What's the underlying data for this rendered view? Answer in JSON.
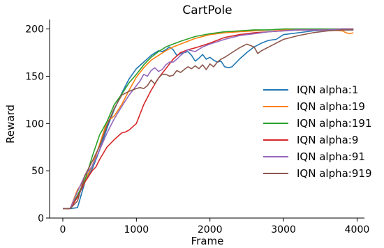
{
  "chart_data": {
    "type": "line",
    "title": "CartPole",
    "xlabel": "Frame",
    "ylabel": "Reward",
    "xlim": [
      -180,
      4100
    ],
    "ylim": [
      0,
      210
    ],
    "xticks": [
      0,
      1000,
      2000,
      3000,
      4000
    ],
    "yticks": [
      0,
      50,
      100,
      150,
      200
    ],
    "grid": false,
    "legend_position": "center-right",
    "series": [
      {
        "name": "IQN alpha:1",
        "color": "#1f77b4",
        "x": [
          0,
          100,
          200,
          300,
          400,
          500,
          600,
          700,
          800,
          900,
          1000,
          1100,
          1200,
          1300,
          1350,
          1400,
          1450,
          1500,
          1550,
          1600,
          1700,
          1750,
          1800,
          1850,
          1900,
          1950,
          2000,
          2050,
          2100,
          2150,
          2200,
          2250,
          2300,
          2350,
          2400,
          2500,
          2600,
          2700,
          2800,
          2900,
          3000,
          3200,
          3400,
          3600,
          3800,
          3950
        ],
        "y": [
          10,
          10,
          11,
          38,
          52,
          72,
          95,
          115,
          132,
          147,
          158,
          165,
          172,
          177,
          176,
          178,
          181,
          178,
          172,
          174,
          176,
          172,
          166,
          169,
          173,
          168,
          170,
          167,
          165,
          166,
          160,
          159,
          160,
          164,
          168,
          175,
          181,
          185,
          188,
          189,
          194,
          196,
          198,
          199,
          199,
          199
        ]
      },
      {
        "name": "IQN alpha:19",
        "color": "#ff7f0e",
        "x": [
          0,
          100,
          200,
          300,
          400,
          500,
          600,
          700,
          800,
          900,
          1000,
          1100,
          1200,
          1300,
          1400,
          1500,
          1600,
          1800,
          2000,
          2200,
          2400,
          2600,
          2800,
          3000,
          3200,
          3400,
          3600,
          3800,
          3850,
          3900,
          3950
        ],
        "y": [
          10,
          10,
          30,
          40,
          55,
          78,
          102,
          108,
          120,
          135,
          149,
          159,
          167,
          172,
          177,
          181,
          184,
          190,
          194,
          196,
          197,
          198,
          199,
          199,
          199,
          199,
          199,
          198,
          196,
          195,
          196
        ]
      },
      {
        "name": "IQN alpha:191",
        "color": "#2ca02c",
        "x": [
          0,
          100,
          200,
          300,
          400,
          500,
          600,
          700,
          800,
          900,
          1000,
          1100,
          1200,
          1300,
          1400,
          1500,
          1600,
          1800,
          2000,
          2200,
          2400,
          2600,
          2800,
          3000,
          3200,
          3400,
          3600,
          3800,
          3950
        ],
        "y": [
          10,
          10,
          24,
          40,
          65,
          88,
          102,
          120,
          131,
          143,
          152,
          162,
          170,
          176,
          181,
          184,
          187,
          192,
          195,
          197,
          198,
          199,
          199,
          200,
          200,
          200,
          200,
          200,
          200
        ]
      },
      {
        "name": "IQN alpha:9",
        "color": "#d62728",
        "x": [
          0,
          100,
          200,
          300,
          400,
          450,
          500,
          600,
          700,
          800,
          850,
          900,
          1000,
          1100,
          1200,
          1300,
          1400,
          1500,
          1600,
          1700,
          1800,
          2000,
          2200,
          2400,
          2600,
          2800,
          3000,
          3200,
          3400,
          3600,
          3800,
          3950
        ],
        "y": [
          10,
          10,
          22,
          38,
          50,
          54,
          62,
          75,
          83,
          90,
          91,
          93,
          100,
          120,
          135,
          148,
          158,
          168,
          175,
          178,
          180,
          185,
          191,
          194,
          196,
          197,
          198,
          199,
          199,
          199,
          200,
          200
        ]
      },
      {
        "name": "IQN alpha:91",
        "color": "#9467bd",
        "x": [
          0,
          100,
          200,
          300,
          400,
          500,
          600,
          700,
          800,
          900,
          1000,
          1050,
          1100,
          1150,
          1200,
          1250,
          1300,
          1350,
          1400,
          1450,
          1500,
          1550,
          1600,
          1700,
          1800,
          1900,
          2000,
          2200,
          2400,
          2600,
          2800,
          3000,
          3200,
          3400,
          3600,
          3800,
          3950
        ],
        "y": [
          10,
          10,
          28,
          45,
          55,
          72,
          90,
          105,
          118,
          130,
          140,
          145,
          152,
          150,
          156,
          159,
          155,
          157,
          162,
          165,
          165,
          168,
          172,
          178,
          176,
          181,
          184,
          189,
          193,
          195,
          197,
          198,
          199,
          199,
          199,
          200,
          200
        ]
      },
      {
        "name": "IQN alpha:919",
        "color": "#8c564b",
        "x": [
          0,
          100,
          200,
          300,
          400,
          500,
          600,
          700,
          800,
          900,
          1000,
          1050,
          1100,
          1150,
          1200,
          1250,
          1300,
          1350,
          1400,
          1450,
          1500,
          1550,
          1600,
          1650,
          1700,
          1750,
          1800,
          1850,
          1900,
          1950,
          2000,
          2050,
          2100,
          2150,
          2200,
          2300,
          2400,
          2500,
          2600,
          2650,
          2700,
          2800,
          2900,
          3000,
          3200,
          3400,
          3600,
          3800,
          3950
        ],
        "y": [
          10,
          10,
          18,
          45,
          60,
          76,
          98,
          116,
          130,
          134,
          137,
          138,
          137,
          140,
          146,
          142,
          148,
          152,
          152,
          150,
          151,
          156,
          154,
          157,
          160,
          158,
          161,
          158,
          162,
          157,
          163,
          160,
          165,
          168,
          170,
          175,
          180,
          184,
          181,
          174,
          177,
          181,
          185,
          189,
          193,
          196,
          198,
          199,
          199
        ]
      }
    ]
  }
}
